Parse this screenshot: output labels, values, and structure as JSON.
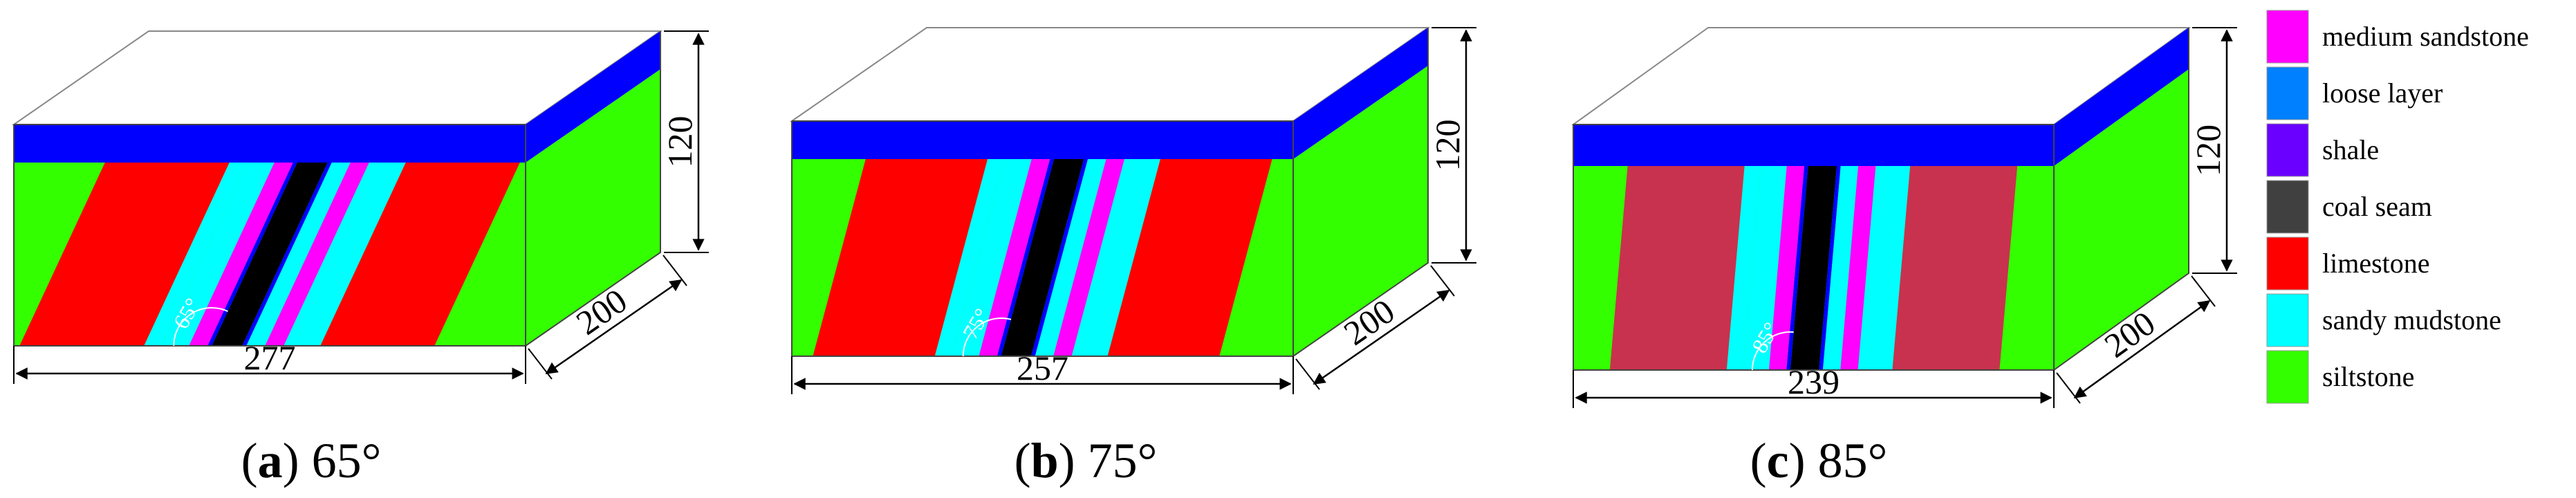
{
  "panels": [
    {
      "id": "a",
      "letter": "a",
      "caption_value": " 65°",
      "angle_label": "65°",
      "width_label": "277",
      "height_label": "120",
      "depth_label": "200",
      "dip_angle_deg": 65,
      "limestone_color": "#ff0000"
    },
    {
      "id": "b",
      "letter": "b",
      "caption_value": " 75°",
      "angle_label": "75°",
      "width_label": "257",
      "height_label": "120",
      "depth_label": "200",
      "dip_angle_deg": 75,
      "limestone_color": "#ff0000"
    },
    {
      "id": "c",
      "letter": "c",
      "caption_value": " 85°",
      "angle_label": "85°",
      "width_label": "239",
      "height_label": "120",
      "depth_label": "200",
      "dip_angle_deg": 85,
      "limestone_color": "#c8324e"
    }
  ],
  "legend": [
    {
      "label": "medium sandstone",
      "color": "#ff00ff"
    },
    {
      "label": "loose layer",
      "color": "#0080ff"
    },
    {
      "label": "shale",
      "color": "#6a00ff"
    },
    {
      "label": "coal seam",
      "color": "#404040"
    },
    {
      "label": "limestone",
      "color": "#ff0000"
    },
    {
      "label": "sandy mudstone",
      "color": "#00ffff"
    },
    {
      "label": "siltstone",
      "color": "#33ff00"
    }
  ],
  "colors": {
    "top_layer": "#0000ff",
    "siltstone": "#33ff00",
    "sandy_mudstone": "#00ffff",
    "medium_sandstone": "#ff00ff",
    "coal_seam": "#000000",
    "shale": "#0000ff",
    "top_face": "#ffffff"
  }
}
